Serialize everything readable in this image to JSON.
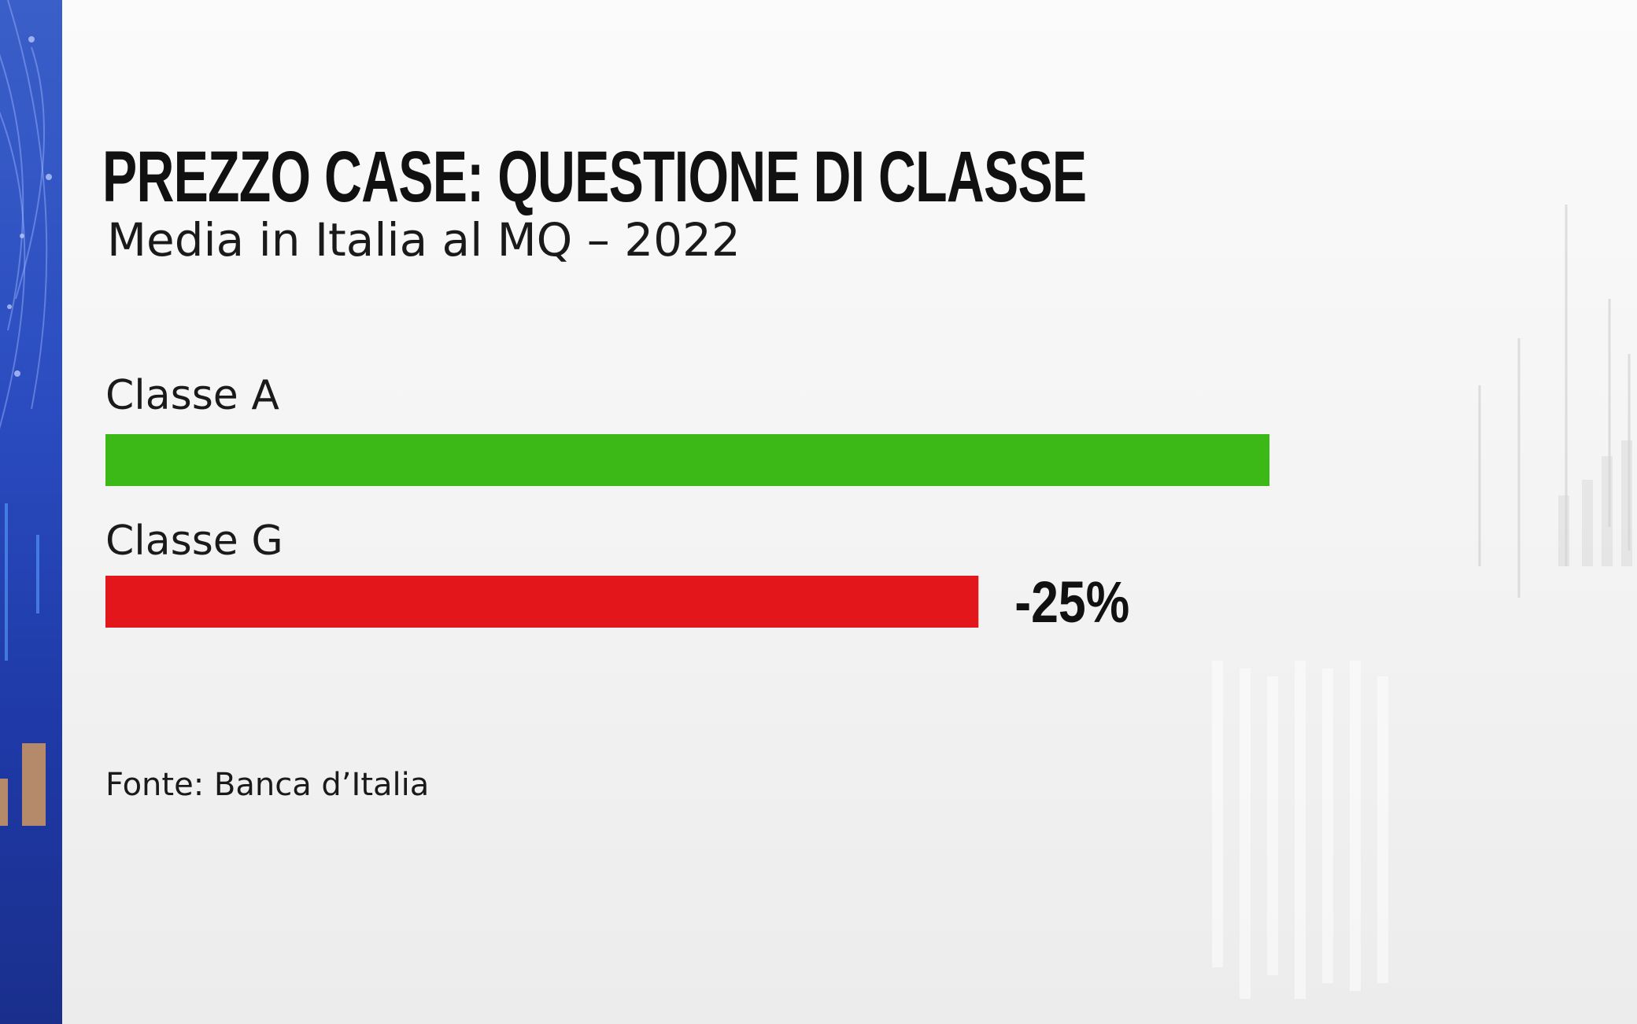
{
  "title": "PREZZO CASE: QUESTIONE DI CLASSE",
  "subtitle": "Media in Italia al MQ – 2022",
  "source": "Fonte:  Banca d’Italia",
  "colors": {
    "background": "#f4f4f4",
    "strip": "#2a4cc0",
    "classe_a": "#3cb916",
    "classe_g": "#e3161b",
    "text": "#111111"
  },
  "chart_data": {
    "type": "bar",
    "orientation": "horizontal",
    "categories": [
      "Classe A",
      "Classe G"
    ],
    "values": [
      100,
      75
    ],
    "annotations": [
      "",
      "-25%"
    ],
    "xlim": [
      0,
      100
    ],
    "grid": false,
    "axes_visible": false
  }
}
